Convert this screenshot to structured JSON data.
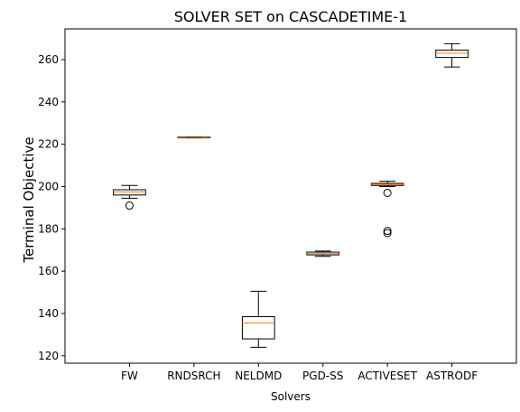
{
  "chart_data": {
    "type": "box",
    "title": "SOLVER SET on CASCADETIME-1",
    "xlabel": "Solvers",
    "ylabel": "Terminal Objective",
    "ylim": [
      116.5,
      274.5
    ],
    "yticks": [
      120,
      140,
      160,
      180,
      200,
      220,
      240,
      260
    ],
    "grid": false,
    "categories": [
      "FW",
      "RNDSRCH",
      "NELDMD",
      "PGD-SS",
      "ACTIVESET",
      "ASTRODF"
    ],
    "boxes": [
      {
        "whisker_low": 194.5,
        "q1": 196.0,
        "median": 197.5,
        "q3": 198.5,
        "whisker_high": 200.5,
        "outliers": [
          191.0
        ]
      },
      {
        "whisker_low": 223.0,
        "q1": 223.0,
        "median": 223.2,
        "q3": 223.4,
        "whisker_high": 223.4,
        "outliers": []
      },
      {
        "whisker_low": 124.0,
        "q1": 128.0,
        "median": 135.5,
        "q3": 138.5,
        "whisker_high": 150.5,
        "outliers": []
      },
      {
        "whisker_low": 167.0,
        "q1": 167.7,
        "median": 168.3,
        "q3": 169.0,
        "whisker_high": 169.5,
        "outliers": []
      },
      {
        "whisker_low": 200.0,
        "q1": 200.5,
        "median": 201.0,
        "q3": 201.5,
        "whisker_high": 202.5,
        "outliers": [
          197.0,
          179.0,
          178.0
        ]
      },
      {
        "whisker_low": 256.5,
        "q1": 261.0,
        "median": 263.0,
        "q3": 264.5,
        "whisker_high": 267.5,
        "outliers": []
      }
    ],
    "colors": {
      "box": "#000000",
      "median": "#ff7f0e"
    }
  }
}
